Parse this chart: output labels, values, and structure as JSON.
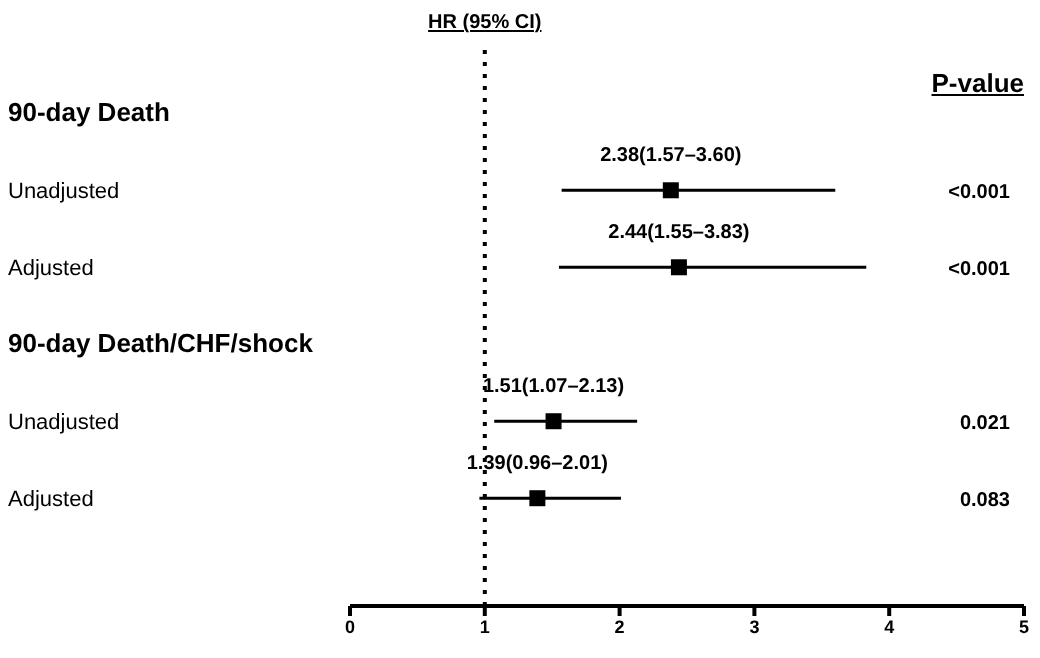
{
  "chart_data": {
    "type": "scatter",
    "orientation": "horizontal",
    "categories": [
      "90-day Death",
      "Unadjusted",
      "Adjusted",
      "90-day Death/CHF/shock",
      "Unadjusted",
      "Adjusted"
    ],
    "values": [
      null,
      2.38,
      2.44,
      null,
      1.51,
      1.39
    ],
    "errors": [
      null,
      [
        1.57,
        3.6
      ],
      [
        1.55,
        3.83
      ],
      null,
      [
        1.07,
        2.13
      ],
      [
        0.96,
        2.01
      ]
    ],
    "value_labels": [
      null,
      "2.38(1.57–3.60)",
      "2.44(1.55–3.83)",
      null,
      "1.51(1.07–2.13)",
      "1.39(0.96–2.01)"
    ],
    "color": "#000000",
    "marker": "square",
    "xlim": [
      0,
      5
    ],
    "xticks": [
      0,
      1,
      2,
      3,
      4,
      5
    ],
    "ref_lines": [
      {
        "axis": "x",
        "value": 1,
        "label": "HR (95% CI)",
        "line_style": "dotted",
        "color": "#000000"
      }
    ],
    "annotations": [
      "P-value",
      "<0.001",
      "<0.001",
      "0.021",
      "0.083"
    ]
  }
}
